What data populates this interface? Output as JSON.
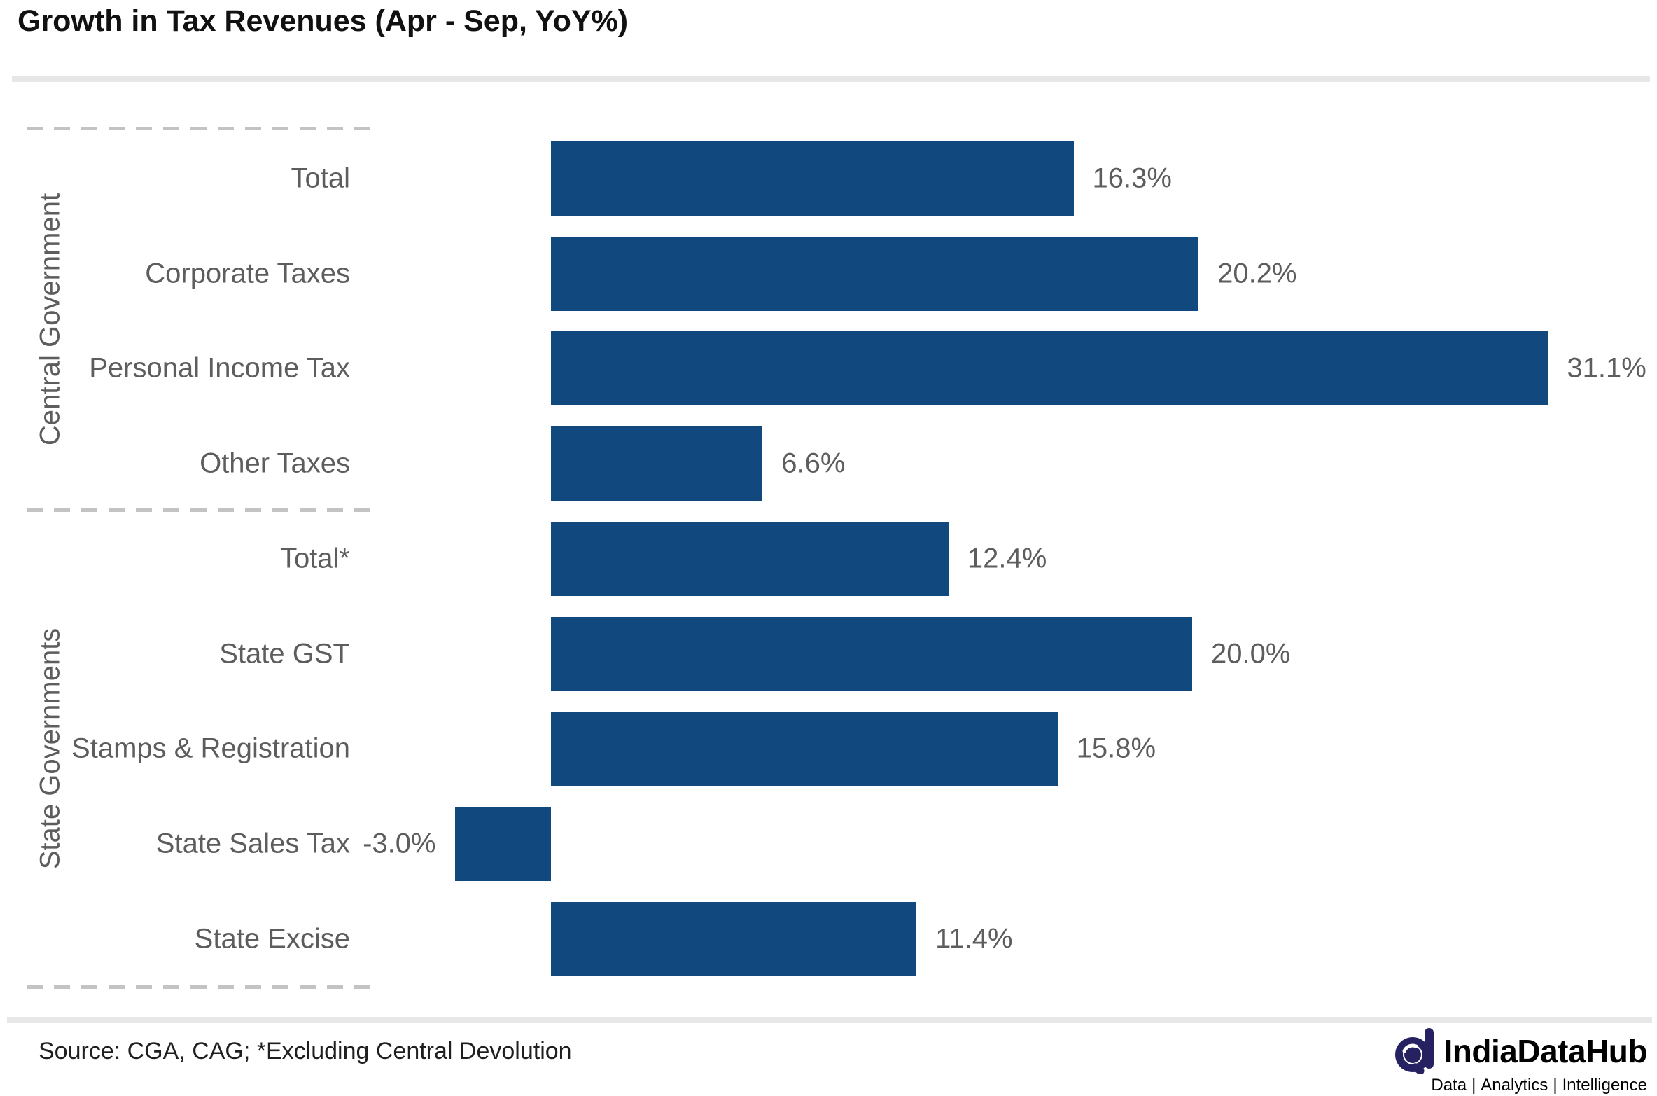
{
  "header": {
    "title": "Growth in Tax Revenues (Apr - Sep, YoY%)"
  },
  "chart_data": {
    "type": "bar",
    "orientation": "horizontal",
    "title": "Growth in Tax Revenues (Apr - Sep, YoY%)",
    "unit": "%",
    "value_axis_max": 34.5,
    "grid": false,
    "bar_color": "#11497e",
    "label_color": "#5d5d5d",
    "groups": [
      {
        "label": "Central Government",
        "items": [
          {
            "label": "Total",
            "value": 16.3,
            "display": "16.3%"
          },
          {
            "label": "Corporate Taxes",
            "value": 20.2,
            "display": "20.2%"
          },
          {
            "label": "Personal Income Tax",
            "value": 31.1,
            "display": "31.1%"
          },
          {
            "label": "Other Taxes",
            "value": 6.6,
            "display": "6.6%"
          }
        ]
      },
      {
        "label": "State Governments",
        "items": [
          {
            "label": "Total*",
            "value": 12.4,
            "display": "12.4%"
          },
          {
            "label": "State GST",
            "value": 20.0,
            "display": "20.0%"
          },
          {
            "label": "Stamps & Registration",
            "value": 15.8,
            "display": "15.8%"
          },
          {
            "label": "State Sales Tax",
            "value": -3.0,
            "display": "-3.0%"
          },
          {
            "label": "State Excise",
            "value": 11.4,
            "display": "11.4%"
          }
        ]
      }
    ]
  },
  "footer": {
    "source": "Source: CGA, CAG; *Excluding Central Devolution",
    "logo": {
      "icon": "indiadatahub-d-magnifier-icon",
      "brand": "IndiaDataHub",
      "brand_color": "#262262",
      "tagline_parts": [
        "Data",
        "Analytics",
        "Intelligence"
      ],
      "tagline_color": "#34348c",
      "separator": "|"
    }
  }
}
